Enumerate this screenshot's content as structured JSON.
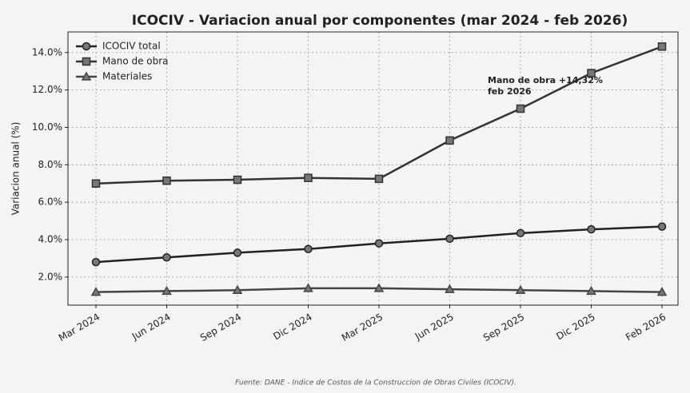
{
  "chart_data": {
    "type": "line",
    "title": "ICOCIV - Variacion anual por componentes (mar 2024 - feb 2026)",
    "y_label": "Variacion anual (%)",
    "categories": [
      "Mar 2024",
      "Jun 2024",
      "Sep 2024",
      "Dic 2024",
      "Mar 2025",
      "Jun 2025",
      "Sep 2025",
      "Dic 2025",
      "Feb 2026"
    ],
    "series": [
      {
        "name": "ICOCIV total",
        "color": "#222222",
        "marker": "circle",
        "values": [
          2.8,
          3.05,
          3.3,
          3.5,
          3.8,
          4.05,
          4.35,
          4.55,
          4.7
        ]
      },
      {
        "name": "Mano de obra",
        "color": "#333333",
        "marker": "square",
        "values": [
          7.0,
          7.15,
          7.2,
          7.3,
          7.25,
          9.3,
          11.0,
          12.9,
          14.32
        ]
      },
      {
        "name": "Materiales",
        "color": "#444444",
        "marker": "triangle",
        "values": [
          1.2,
          1.25,
          1.3,
          1.4,
          1.4,
          1.35,
          1.3,
          1.25,
          1.2
        ]
      }
    ],
    "ylim": [
      0.5,
      15.1
    ],
    "yticks": [
      {
        "value": 2,
        "label": "2.0%"
      },
      {
        "value": 4,
        "label": "4.0%"
      },
      {
        "value": 6,
        "label": "6.0%"
      },
      {
        "value": 8,
        "label": "8.0%"
      },
      {
        "value": 10,
        "label": "10.0%"
      },
      {
        "value": 12,
        "label": "12.0%"
      },
      {
        "value": 14,
        "label": "14.0%"
      }
    ],
    "grid": true,
    "legend": "upper left",
    "annotation": [
      "Mano de obra +14,32%",
      "feb 2026"
    ],
    "source": "Fuente: DANE - Indice de Costos de la Construccion de Obras Civiles (ICOCIV)."
  }
}
